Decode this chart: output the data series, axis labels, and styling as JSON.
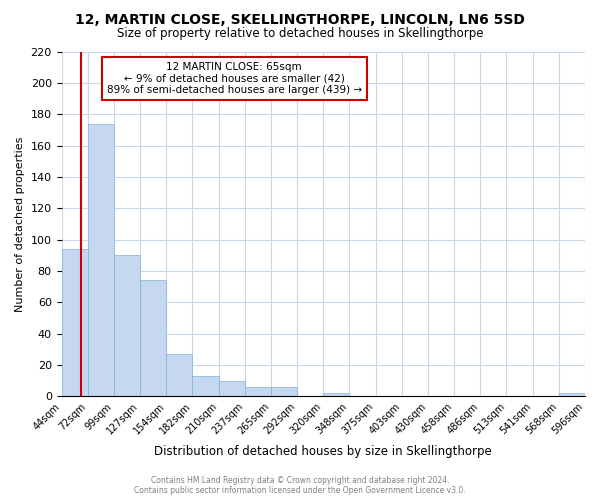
{
  "title": "12, MARTIN CLOSE, SKELLINGTHORPE, LINCOLN, LN6 5SD",
  "subtitle": "Size of property relative to detached houses in Skellingthorpe",
  "xlabel": "Distribution of detached houses by size in Skellingthorpe",
  "ylabel": "Number of detached properties",
  "bar_color": "#c5d8f0",
  "bar_edge_color": "#7fb3d9",
  "bins": [
    "44sqm",
    "72sqm",
    "99sqm",
    "127sqm",
    "154sqm",
    "182sqm",
    "210sqm",
    "237sqm",
    "265sqm",
    "292sqm",
    "320sqm",
    "348sqm",
    "375sqm",
    "403sqm",
    "430sqm",
    "458sqm",
    "486sqm",
    "513sqm",
    "541sqm",
    "568sqm",
    "596sqm"
  ],
  "values": [
    94,
    174,
    90,
    74,
    27,
    13,
    10,
    6,
    6,
    0,
    2,
    0,
    0,
    0,
    0,
    0,
    0,
    0,
    0,
    2
  ],
  "annotation_title": "12 MARTIN CLOSE: 65sqm",
  "annotation_line1": "← 9% of detached houses are smaller (42)",
  "annotation_line2": "89% of semi-detached houses are larger (439) →",
  "ylim": [
    0,
    220
  ],
  "yticks": [
    0,
    20,
    40,
    60,
    80,
    100,
    120,
    140,
    160,
    180,
    200,
    220
  ],
  "footer1": "Contains HM Land Registry data © Crown copyright and database right 2024.",
  "footer2": "Contains public sector information licensed under the Open Government Licence v3.0.",
  "grid_color": "#c8d8e8",
  "vline_color": "#cc0000",
  "annotation_box_color": "#ffffff",
  "annotation_box_edge": "#cc0000"
}
